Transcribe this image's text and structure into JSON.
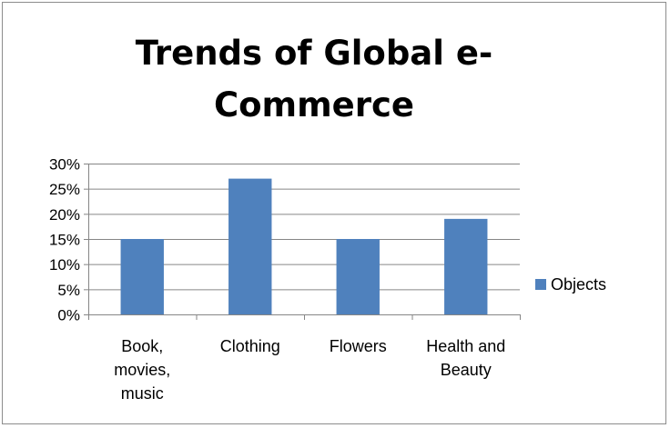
{
  "chart_data": {
    "type": "bar",
    "title": "Trends of Global e-Commerce",
    "title_lines": [
      "Trends of Global e-",
      "Commerce"
    ],
    "categories": [
      "Book, movies, music",
      "Clothing",
      "Flowers",
      "Health and Beauty"
    ],
    "category_lines": [
      [
        "Book,",
        "movies,",
        "music"
      ],
      [
        "Clothing"
      ],
      [
        "Flowers"
      ],
      [
        "Health and",
        "Beauty"
      ]
    ],
    "series": [
      {
        "name": "Objects",
        "values": [
          0.15,
          0.27,
          0.15,
          0.19
        ],
        "color": "#4f81bd"
      }
    ],
    "ylim": [
      0,
      0.3
    ],
    "y_ticks": [
      0,
      0.05,
      0.1,
      0.15,
      0.2,
      0.25,
      0.3
    ],
    "y_tick_labels": [
      "0%",
      "5%",
      "10%",
      "15%",
      "20%",
      "25%",
      "30%"
    ],
    "xlabel": "",
    "ylabel": "",
    "grid": true,
    "legend_position": "right"
  }
}
